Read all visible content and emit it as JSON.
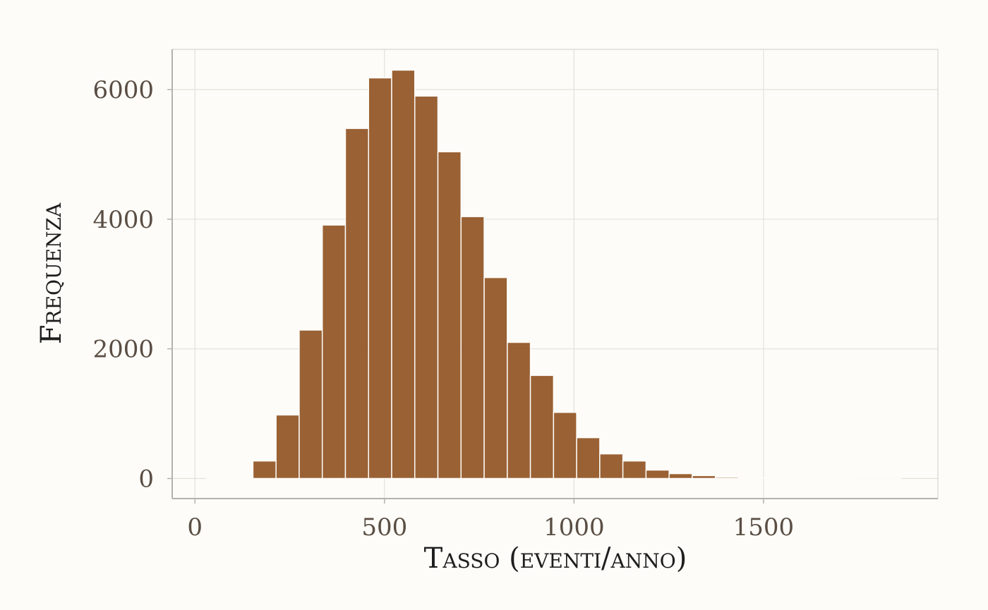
{
  "chart_data": {
    "type": "bar",
    "xlabel": "Tasso (eventi/anno)",
    "ylabel": "Frequenza",
    "xlim": [
      -60,
      1960
    ],
    "ylim": [
      -310,
      6620
    ],
    "x_ticks": [
      0,
      500,
      1000,
      1500
    ],
    "y_ticks": [
      0,
      2000,
      4000,
      6000
    ],
    "grid": true,
    "bin_width": 61,
    "bins": [
      {
        "x0": 31,
        "x1": 92,
        "count": 5
      },
      {
        "x0": 92,
        "x1": 153,
        "count": 15
      },
      {
        "x0": 153,
        "x1": 214,
        "count": 270
      },
      {
        "x0": 214,
        "x1": 275,
        "count": 980
      },
      {
        "x0": 275,
        "x1": 336,
        "count": 2290
      },
      {
        "x0": 336,
        "x1": 397,
        "count": 3910
      },
      {
        "x0": 397,
        "x1": 458,
        "count": 5400
      },
      {
        "x0": 458,
        "x1": 519,
        "count": 6180
      },
      {
        "x0": 519,
        "x1": 580,
        "count": 6300
      },
      {
        "x0": 580,
        "x1": 641,
        "count": 5900
      },
      {
        "x0": 641,
        "x1": 702,
        "count": 5040
      },
      {
        "x0": 702,
        "x1": 763,
        "count": 4040
      },
      {
        "x0": 763,
        "x1": 824,
        "count": 3100
      },
      {
        "x0": 824,
        "x1": 885,
        "count": 2100
      },
      {
        "x0": 885,
        "x1": 946,
        "count": 1590
      },
      {
        "x0": 946,
        "x1": 1007,
        "count": 1020
      },
      {
        "x0": 1007,
        "x1": 1068,
        "count": 630
      },
      {
        "x0": 1068,
        "x1": 1129,
        "count": 380
      },
      {
        "x0": 1129,
        "x1": 1190,
        "count": 270
      },
      {
        "x0": 1190,
        "x1": 1251,
        "count": 130
      },
      {
        "x0": 1251,
        "x1": 1312,
        "count": 75
      },
      {
        "x0": 1312,
        "x1": 1373,
        "count": 45
      },
      {
        "x0": 1373,
        "x1": 1434,
        "count": 20
      },
      {
        "x0": 1434,
        "x1": 1495,
        "count": 8
      },
      {
        "x0": 1495,
        "x1": 1556,
        "count": 5
      },
      {
        "x0": 1556,
        "x1": 1617,
        "count": 3
      },
      {
        "x0": 1617,
        "x1": 1678,
        "count": 2
      },
      {
        "x0": 1678,
        "x1": 1739,
        "count": 2
      },
      {
        "x0": 1739,
        "x1": 1800,
        "count": 1
      },
      {
        "x0": 1800,
        "x1": 1861,
        "count": 1
      }
    ],
    "colors": {
      "background": "#fdfcf8",
      "bar_fill": "#955829",
      "bar_stroke": "#fdfcf8",
      "grid": "#e3e1dc",
      "axis": "#b5b2ad",
      "tick_text": "#5a4e44",
      "title_text": "#1e1e1e"
    }
  }
}
